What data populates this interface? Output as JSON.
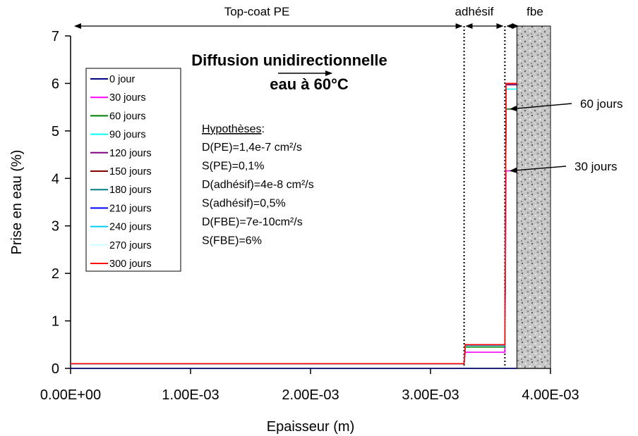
{
  "chart_data": {
    "type": "line",
    "xlabel": "Epaisseur (m)",
    "ylabel": "Prise en eau (%)",
    "xlim": [
      0,
      0.004
    ],
    "ylim": [
      0,
      7
    ],
    "x_ticks": [
      "0.00E+00",
      "1.00E-03",
      "2.00E-03",
      "3.00E-03",
      "4.00E-03"
    ],
    "x_tick_values": [
      0,
      0.001,
      0.002,
      0.003,
      0.004
    ],
    "y_ticks": [
      "0",
      "1",
      "2",
      "3",
      "4",
      "5",
      "6",
      "7"
    ],
    "y_tick_values": [
      0,
      1,
      2,
      3,
      4,
      5,
      6,
      7
    ],
    "grid": false,
    "legend_placement": "left",
    "title_lines": [
      "Diffusion unidirectionnelle",
      "eau à 60°C"
    ],
    "regions": [
      {
        "label": "Top-coat PE",
        "x_start": 0,
        "x_end": 0.00328
      },
      {
        "label": "adhésif",
        "x_start": 0.00328,
        "x_end": 0.00362
      },
      {
        "label": "fbe",
        "x_start": 0.00362,
        "x_end": 0.004
      }
    ],
    "boundaries_x": [
      0.00328,
      0.00362
    ],
    "fbe_block": {
      "x_start": 0.00372,
      "x_end": 0.004
    },
    "hypotheses_title": "Hypothèses",
    "hypotheses_colon": ":",
    "hypotheses": [
      "D(PE)=1,4e-7 cm²/s",
      "S(PE)=0,1%",
      "D(adhésif)=4e-8 cm²/s",
      "S(adhésif)=0,5%",
      "D(FBE)=7e-10cm²/s",
      "S(FBE)=6%"
    ],
    "annotations": [
      {
        "text": "60 jours",
        "x": 0.00363,
        "y": 5.46
      },
      {
        "text": "30 jours",
        "x": 0.00363,
        "y": 4.16
      }
    ],
    "series": [
      {
        "name": "0 jour",
        "color": "#000080",
        "pe": 0.0,
        "adh": 0.0,
        "fbe": 0.0
      },
      {
        "name": "30 jours",
        "color": "#ff00ff",
        "pe": 0.1,
        "adh": 0.34,
        "fbe": 4.16
      },
      {
        "name": "60 jours",
        "color": "#008000",
        "pe": 0.1,
        "adh": 0.45,
        "fbe": 5.46
      },
      {
        "name": "90 jours",
        "color": "#00ffff",
        "pe": 0.1,
        "adh": 0.48,
        "fbe": 5.88
      },
      {
        "name": "120 jours",
        "color": "#800080",
        "pe": 0.1,
        "adh": 0.49,
        "fbe": 5.97
      },
      {
        "name": "150 jours",
        "color": "#800000",
        "pe": 0.1,
        "adh": 0.5,
        "fbe": 5.99
      },
      {
        "name": "180 jours",
        "color": "#008080",
        "pe": 0.1,
        "adh": 0.5,
        "fbe": 6.0
      },
      {
        "name": "210 jours",
        "color": "#0000ff",
        "pe": 0.1,
        "adh": 0.5,
        "fbe": 6.0
      },
      {
        "name": "240 jours",
        "color": "#00ccff",
        "pe": 0.1,
        "adh": 0.5,
        "fbe": 6.0
      },
      {
        "name": "270 jours",
        "color": "#ccffff",
        "pe": 0.1,
        "adh": 0.5,
        "fbe": 6.0
      },
      {
        "name": "300 jours",
        "color": "#ff0000",
        "pe": 0.1,
        "adh": 0.5,
        "fbe": 6.0
      }
    ]
  }
}
